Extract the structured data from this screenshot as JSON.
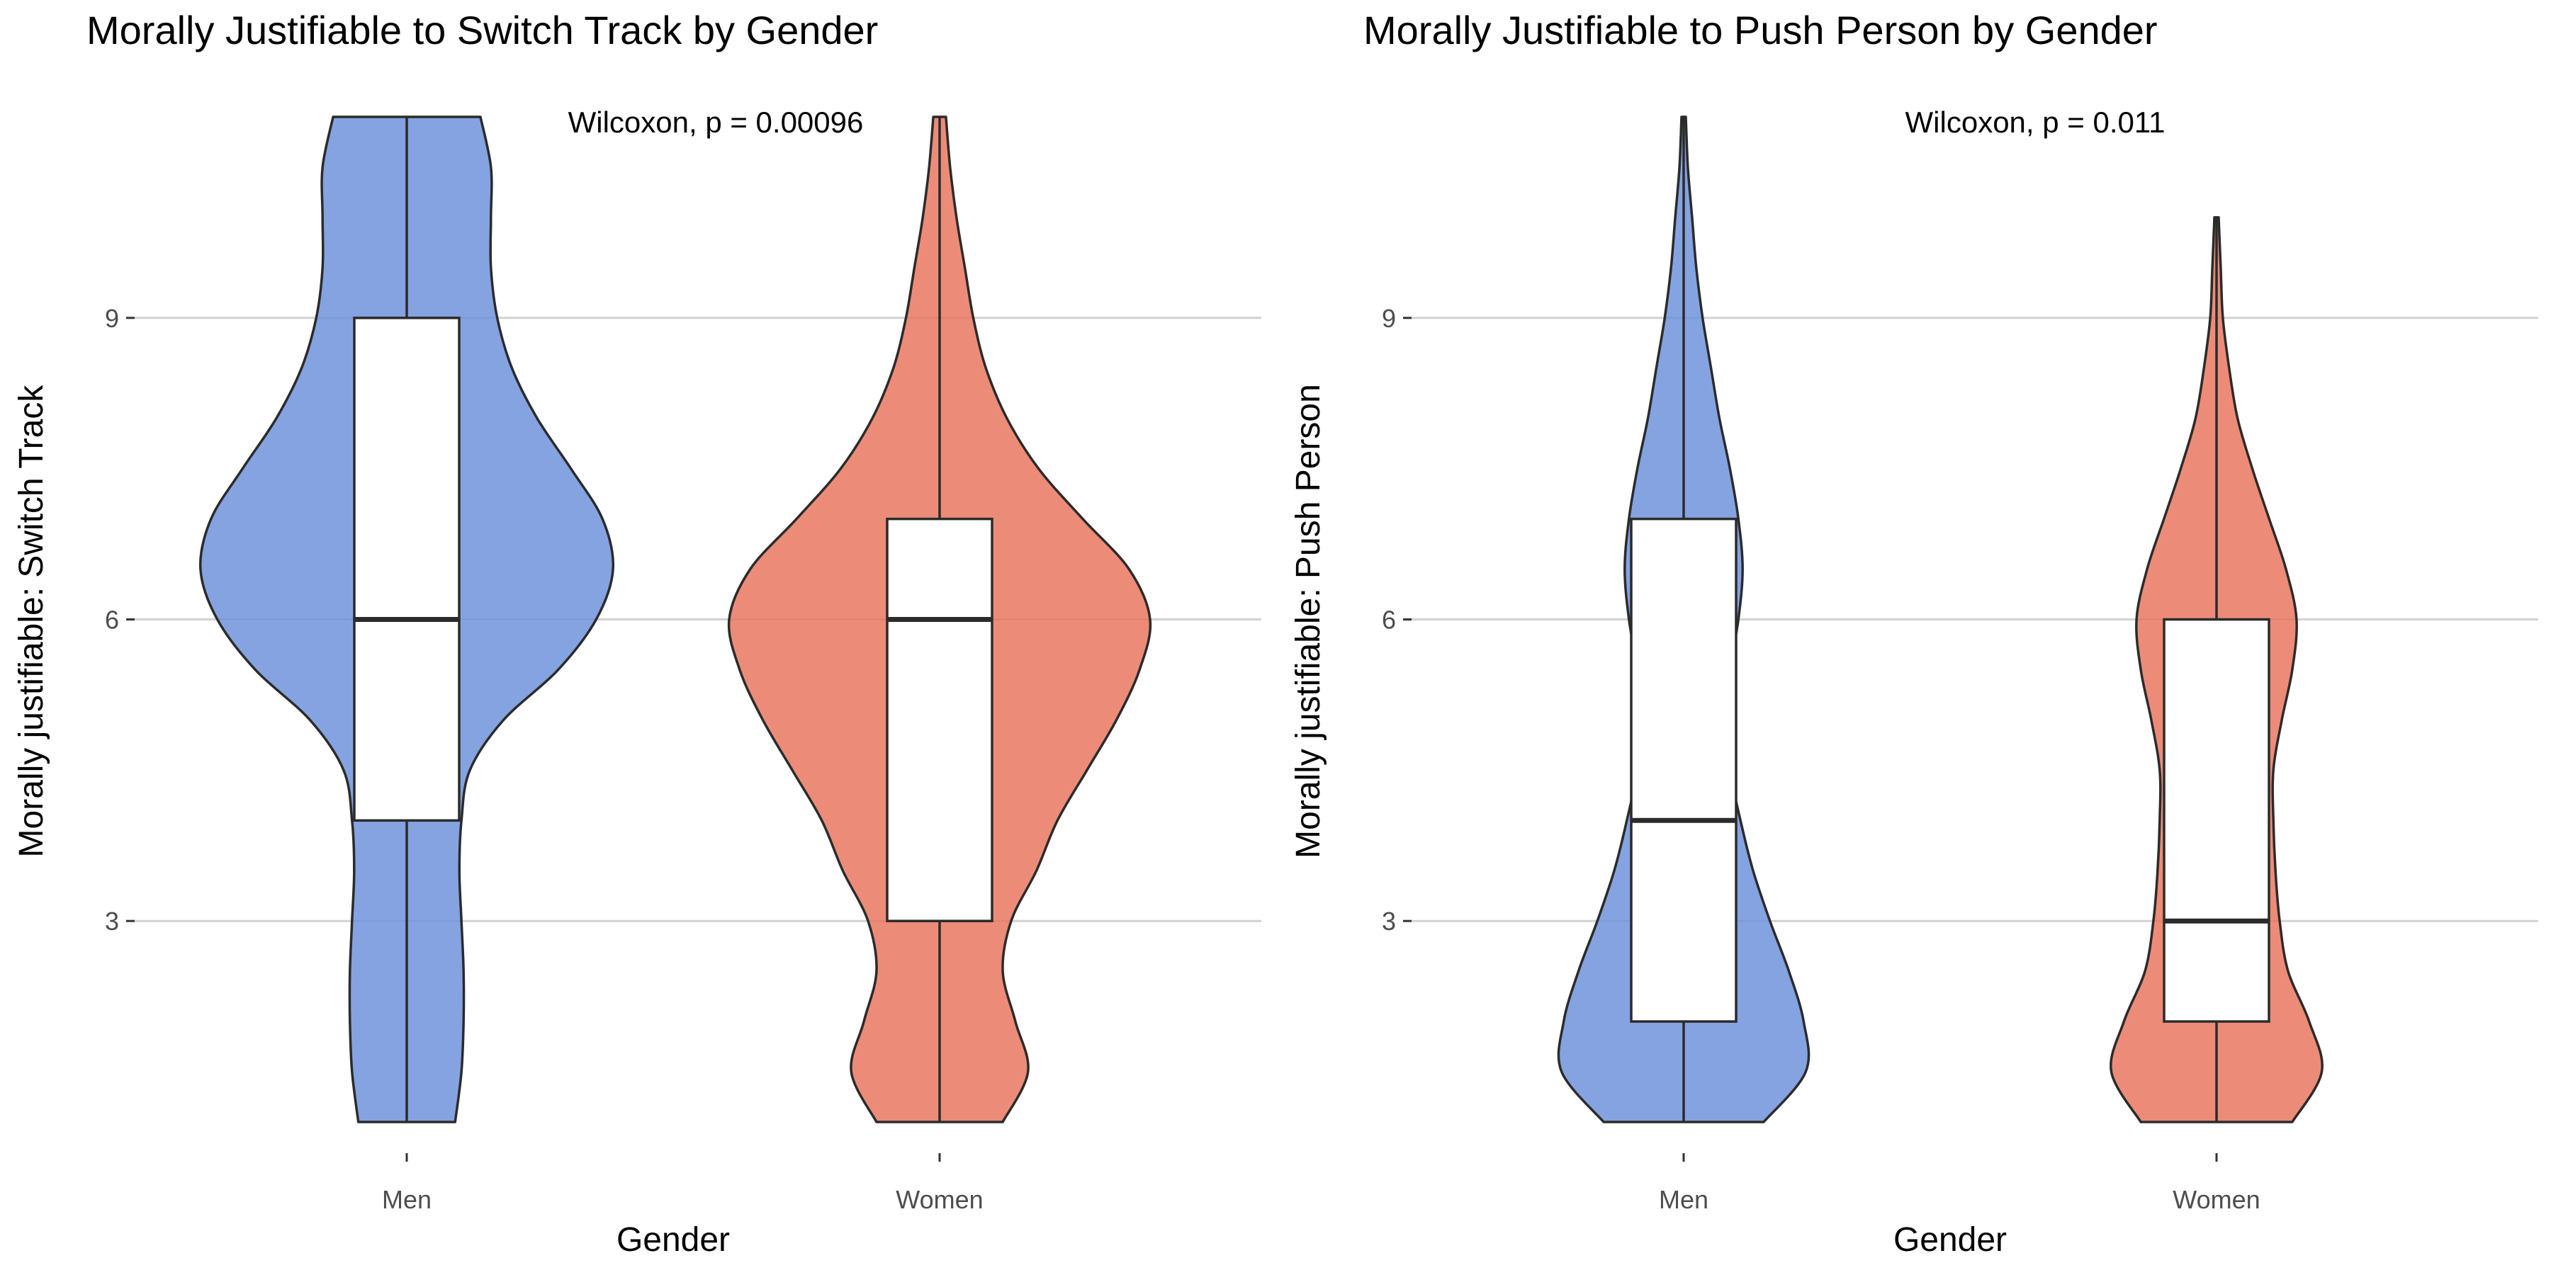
{
  "chart_data": [
    {
      "type": "violin",
      "title": "Morally Justifiable to Switch Track by Gender",
      "xlabel": "Gender",
      "ylabel": "Morally justifiable: Switch Track",
      "annotation": "Wilcoxon, p = 0.00096",
      "categories": [
        "Men",
        "Women"
      ],
      "yticks": [
        3,
        6,
        9
      ],
      "ylim": [
        0.3,
        11.5
      ],
      "grid": "horizontal",
      "groups": [
        {
          "category": "Men",
          "color": "#6A8FDB",
          "min": 1,
          "q1": 4,
          "median": 6,
          "q3": 9,
          "max": 11,
          "density": [
            [
              1,
              0.23
            ],
            [
              1.5,
              0.26
            ],
            [
              2,
              0.27
            ],
            [
              2.5,
              0.27
            ],
            [
              3,
              0.26
            ],
            [
              3.5,
              0.25
            ],
            [
              4,
              0.26
            ],
            [
              4.5,
              0.3
            ],
            [
              5,
              0.46
            ],
            [
              5.5,
              0.72
            ],
            [
              6,
              0.9
            ],
            [
              6.5,
              0.98
            ],
            [
              7,
              0.93
            ],
            [
              7.5,
              0.78
            ],
            [
              8,
              0.62
            ],
            [
              8.5,
              0.5
            ],
            [
              9,
              0.43
            ],
            [
              9.5,
              0.4
            ],
            [
              10,
              0.4
            ],
            [
              10.5,
              0.4
            ],
            [
              11,
              0.35
            ]
          ]
        },
        {
          "category": "Women",
          "color": "#E8735A",
          "min": 1,
          "q1": 3,
          "median": 6,
          "q3": 7,
          "max": 11,
          "density": [
            [
              1,
              0.3
            ],
            [
              1.5,
              0.42
            ],
            [
              2,
              0.36
            ],
            [
              2.5,
              0.3
            ],
            [
              3,
              0.34
            ],
            [
              3.5,
              0.46
            ],
            [
              4,
              0.56
            ],
            [
              4.5,
              0.7
            ],
            [
              5,
              0.84
            ],
            [
              5.5,
              0.95
            ],
            [
              6,
              1.0
            ],
            [
              6.5,
              0.9
            ],
            [
              7,
              0.68
            ],
            [
              7.5,
              0.47
            ],
            [
              8,
              0.32
            ],
            [
              8.5,
              0.22
            ],
            [
              9,
              0.16
            ],
            [
              9.5,
              0.12
            ],
            [
              10,
              0.08
            ],
            [
              10.5,
              0.05
            ],
            [
              11,
              0.03
            ]
          ]
        }
      ]
    },
    {
      "type": "violin",
      "title": "Morally Justifiable to Push Person by Gender",
      "xlabel": "Gender",
      "ylabel": "Morally justifiable: Push Person",
      "annotation": "Wilcoxon, p = 0.011",
      "categories": [
        "Men",
        "Women"
      ],
      "yticks": [
        3,
        6,
        9
      ],
      "ylim": [
        0.3,
        11.5
      ],
      "grid": "horizontal",
      "groups": [
        {
          "category": "Men",
          "color": "#6A8FDB",
          "min": 1,
          "q1": 2,
          "median": 4,
          "q3": 7,
          "max": 11,
          "density": [
            [
              1,
              0.38
            ],
            [
              1.5,
              0.58
            ],
            [
              2,
              0.57
            ],
            [
              2.5,
              0.5
            ],
            [
              3,
              0.41
            ],
            [
              3.5,
              0.33
            ],
            [
              4,
              0.27
            ],
            [
              4.5,
              0.22
            ],
            [
              5,
              0.2
            ],
            [
              5.5,
              0.22
            ],
            [
              6,
              0.26
            ],
            [
              6.5,
              0.28
            ],
            [
              7,
              0.26
            ],
            [
              7.5,
              0.22
            ],
            [
              8,
              0.17
            ],
            [
              8.5,
              0.13
            ],
            [
              9,
              0.09
            ],
            [
              9.5,
              0.06
            ],
            [
              10,
              0.04
            ],
            [
              10.5,
              0.02
            ],
            [
              11,
              0.01
            ]
          ]
        },
        {
          "category": "Women",
          "color": "#E8735A",
          "min": 1,
          "q1": 2,
          "median": 3,
          "q3": 6,
          "max": 10,
          "density": [
            [
              1,
              0.36
            ],
            [
              1.5,
              0.5
            ],
            [
              2,
              0.44
            ],
            [
              2.5,
              0.34
            ],
            [
              3,
              0.3
            ],
            [
              3.5,
              0.28
            ],
            [
              4,
              0.27
            ],
            [
              4.5,
              0.27
            ],
            [
              5,
              0.31
            ],
            [
              5.5,
              0.36
            ],
            [
              6,
              0.38
            ],
            [
              6.5,
              0.33
            ],
            [
              7,
              0.25
            ],
            [
              7.5,
              0.17
            ],
            [
              8,
              0.1
            ],
            [
              8.5,
              0.06
            ],
            [
              9,
              0.03
            ],
            [
              9.5,
              0.02
            ],
            [
              10,
              0.01
            ]
          ]
        }
      ]
    }
  ]
}
